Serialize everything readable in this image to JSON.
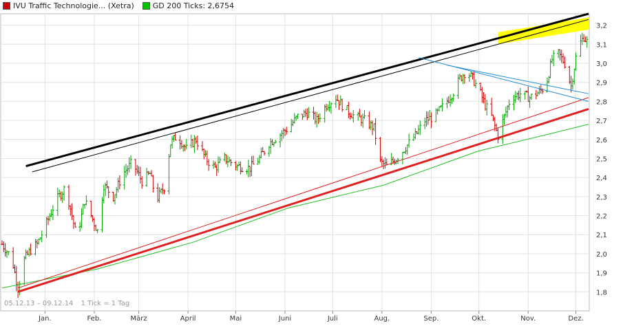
{
  "legend": {
    "items": [
      {
        "label": "IVU Traffic Technologie... (Xetra)",
        "color": "#d00000"
      },
      {
        "label": "GD 200 Ticks: 2,6754",
        "color": "#00c000"
      }
    ]
  },
  "footer": {
    "range": "05.12.13 – 09.12.14",
    "tick": "1 Tick = 1 Tag"
  },
  "chart_data": {
    "type": "bar",
    "subtype": "ohlc",
    "title": "",
    "xlabel": "",
    "ylabel": "",
    "ylim": [
      1.7,
      3.26
    ],
    "y_ticks": [
      1.8,
      1.9,
      2.0,
      2.1,
      2.2,
      2.3,
      2.4,
      2.5,
      2.6,
      2.7,
      2.8,
      2.9,
      3.0,
      3.1,
      3.2
    ],
    "y_tick_labels": [
      "1,8",
      "1,9",
      "2,0",
      "2,1",
      "2,2",
      "2,3",
      "2,4",
      "2,5",
      "2,6",
      "2,7",
      "2,8",
      "2,9",
      "3,0",
      "3,1",
      "3,2"
    ],
    "x_range_days": [
      0,
      369
    ],
    "x_ticks": [
      {
        "label": "Jan.",
        "day": 27
      },
      {
        "label": "Feb.",
        "day": 58
      },
      {
        "label": "März",
        "day": 86
      },
      {
        "label": "April",
        "day": 117
      },
      {
        "label": "Mai",
        "day": 147
      },
      {
        "label": "Juni",
        "day": 178
      },
      {
        "label": "Juli",
        "day": 208
      },
      {
        "label": "Aug.",
        "day": 239
      },
      {
        "label": "Sep.",
        "day": 270
      },
      {
        "label": "Okt.",
        "day": 300
      },
      {
        "label": "Nov.",
        "day": 331
      },
      {
        "label": "Dez.",
        "day": 361
      }
    ],
    "grid": true,
    "up_color": "#00a000",
    "down_color": "#cc0000",
    "price_path": [
      [
        0,
        2.05
      ],
      [
        6,
        1.98
      ],
      [
        10,
        1.82
      ],
      [
        14,
        1.97
      ],
      [
        18,
        2.02
      ],
      [
        22,
        2.05
      ],
      [
        26,
        2.12
      ],
      [
        30,
        2.2
      ],
      [
        34,
        2.28
      ],
      [
        40,
        2.35
      ],
      [
        44,
        2.2
      ],
      [
        47,
        2.08
      ],
      [
        52,
        2.28
      ],
      [
        56,
        2.2
      ],
      [
        60,
        2.12
      ],
      [
        64,
        2.36
      ],
      [
        70,
        2.3
      ],
      [
        76,
        2.42
      ],
      [
        82,
        2.48
      ],
      [
        88,
        2.38
      ],
      [
        93,
        2.42
      ],
      [
        97,
        2.28
      ],
      [
        102,
        2.35
      ],
      [
        106,
        2.58
      ],
      [
        110,
        2.62
      ],
      [
        116,
        2.55
      ],
      [
        122,
        2.6
      ],
      [
        128,
        2.5
      ],
      [
        134,
        2.45
      ],
      [
        140,
        2.5
      ],
      [
        148,
        2.46
      ],
      [
        156,
        2.45
      ],
      [
        162,
        2.5
      ],
      [
        168,
        2.58
      ],
      [
        174,
        2.62
      ],
      [
        180,
        2.66
      ],
      [
        186,
        2.72
      ],
      [
        192,
        2.74
      ],
      [
        198,
        2.7
      ],
      [
        204,
        2.78
      ],
      [
        210,
        2.82
      ],
      [
        216,
        2.76
      ],
      [
        222,
        2.72
      ],
      [
        228,
        2.7
      ],
      [
        234,
        2.66
      ],
      [
        238,
        2.48
      ],
      [
        242,
        2.46
      ],
      [
        248,
        2.5
      ],
      [
        254,
        2.56
      ],
      [
        260,
        2.62
      ],
      [
        266,
        2.7
      ],
      [
        272,
        2.72
      ],
      [
        278,
        2.78
      ],
      [
        284,
        2.85
      ],
      [
        288,
        2.92
      ],
      [
        292,
        2.96
      ],
      [
        296,
        2.92
      ],
      [
        300,
        2.86
      ],
      [
        304,
        2.78
      ],
      [
        308,
        2.72
      ],
      [
        312,
        2.62
      ],
      [
        316,
        2.72
      ],
      [
        320,
        2.82
      ],
      [
        326,
        2.84
      ],
      [
        332,
        2.82
      ],
      [
        338,
        2.85
      ],
      [
        342,
        2.88
      ],
      [
        346,
        3.02
      ],
      [
        350,
        3.05
      ],
      [
        354,
        3.0
      ],
      [
        358,
        2.88
      ],
      [
        362,
        3.08
      ],
      [
        366,
        3.14
      ],
      [
        369,
        3.1
      ]
    ],
    "series": [
      {
        "name": "IVU Traffic Technologie... (Xetra)",
        "kind": "ohlc"
      },
      {
        "name": "GD 200 Ticks: 2,6754",
        "kind": "line",
        "x": [
          0,
          60,
          120,
          180,
          240,
          300,
          340,
          369
        ],
        "values": [
          1.82,
          1.92,
          2.06,
          2.24,
          2.36,
          2.54,
          2.62,
          2.68
        ]
      }
    ],
    "trendlines": [
      {
        "color": "#000000",
        "width": 3,
        "x": [
          15,
          369
        ],
        "y": [
          2.46,
          3.26
        ]
      },
      {
        "color": "#000000",
        "width": 1,
        "x": [
          19,
          369
        ],
        "y": [
          2.43,
          3.23
        ]
      },
      {
        "color": "#e02020",
        "width": 3,
        "x": [
          10,
          369
        ],
        "y": [
          1.8,
          2.76
        ]
      },
      {
        "color": "#e02020",
        "width": 1,
        "x": [
          10,
          369
        ],
        "y": [
          1.82,
          2.82
        ]
      },
      {
        "color": "#1e8cd8",
        "width": 1,
        "x": [
          262,
          369
        ],
        "y": [
          3.03,
          2.8
        ]
      },
      {
        "color": "#1e8cd8",
        "width": 1,
        "x": [
          280,
          369
        ],
        "y": [
          2.99,
          2.84
        ]
      }
    ],
    "highlight_band": {
      "color": "#ffff00",
      "x": [
        312,
        369
      ],
      "y": [
        3.1,
        3.24
      ]
    }
  }
}
